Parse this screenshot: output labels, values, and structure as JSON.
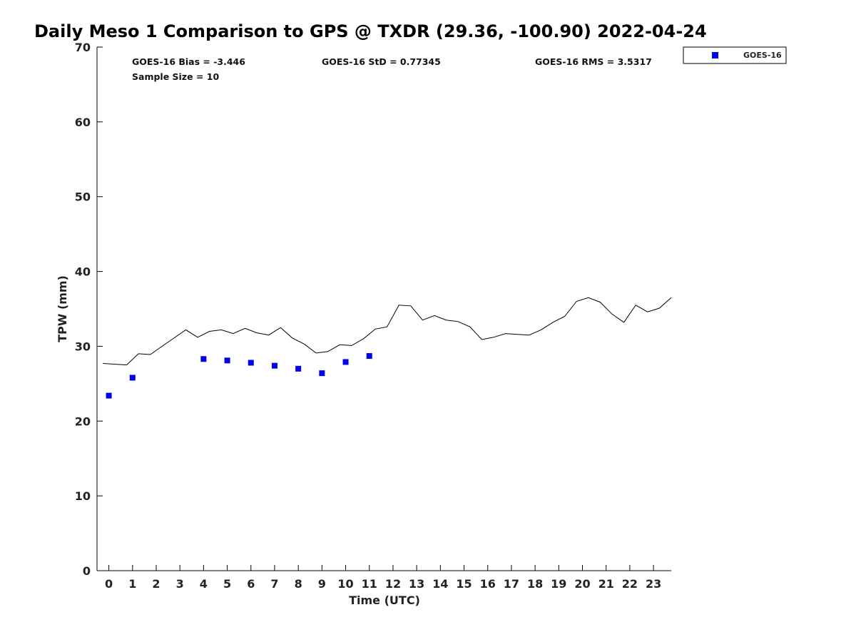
{
  "chart_data": {
    "type": "scatter",
    "title": "Daily Meso 1 Comparison to GPS @ TXDR (29.36, -100.90) 2022-04-24",
    "xlabel": "Time (UTC)",
    "ylabel": "TPW (mm)",
    "xlim": [
      -0.5,
      23.75
    ],
    "ylim": [
      0,
      70
    ],
    "x_ticks": [
      0,
      1,
      2,
      3,
      4,
      5,
      6,
      7,
      8,
      9,
      10,
      11,
      12,
      13,
      14,
      15,
      16,
      17,
      18,
      19,
      20,
      21,
      22,
      23
    ],
    "y_ticks": [
      0,
      10,
      20,
      30,
      40,
      50,
      60,
      70
    ],
    "grid": false,
    "legend_position": "top-right",
    "stats": {
      "bias": "GOES-16 Bias = -3.446",
      "std": "GOES-16 StD = 0.77345",
      "rms": "GOES-16 RMS = 3.5317",
      "sample": "Sample Size = 10"
    },
    "series": [
      {
        "name": "GOES-16",
        "kind": "markers",
        "color": "#0000ee",
        "x": [
          0,
          1,
          4,
          5,
          6,
          7,
          8,
          9,
          10,
          11
        ],
        "y": [
          23.4,
          25.8,
          28.3,
          28.1,
          27.8,
          27.4,
          27.0,
          26.4,
          27.9,
          28.7
        ]
      },
      {
        "kind": "line",
        "color": "#000000",
        "x": [
          -0.25,
          0.75,
          1.25,
          1.75,
          2.25,
          2.75,
          3.25,
          3.75,
          4.25,
          4.75,
          5.25,
          5.75,
          6.25,
          6.75,
          7.25,
          7.75,
          8.25,
          8.75,
          9.25,
          9.75,
          10.25,
          10.75,
          11.25,
          11.75,
          12.25,
          12.75,
          13.25,
          13.75,
          14.25,
          14.75,
          15.25,
          15.75,
          16.25,
          16.75,
          17.25,
          17.75,
          18.25,
          18.75,
          19.25,
          19.75,
          20.25,
          20.75,
          21.25,
          21.75,
          22.25,
          22.75,
          23.25,
          23.75
        ],
        "y": [
          27.7,
          27.5,
          29.0,
          28.9,
          30.0,
          31.1,
          32.2,
          31.2,
          32.0,
          32.2,
          31.7,
          32.4,
          31.8,
          31.5,
          32.5,
          31.1,
          30.3,
          29.1,
          29.3,
          30.2,
          30.1,
          31.0,
          32.3,
          32.6,
          35.5,
          35.4,
          33.5,
          34.1,
          33.5,
          33.3,
          32.6,
          30.9,
          31.2,
          31.7,
          31.6,
          31.5,
          32.2,
          33.2,
          34.0,
          36.0,
          36.5,
          35.9,
          34.3,
          33.2,
          35.5,
          34.6,
          35.1,
          36.5
        ]
      }
    ]
  }
}
